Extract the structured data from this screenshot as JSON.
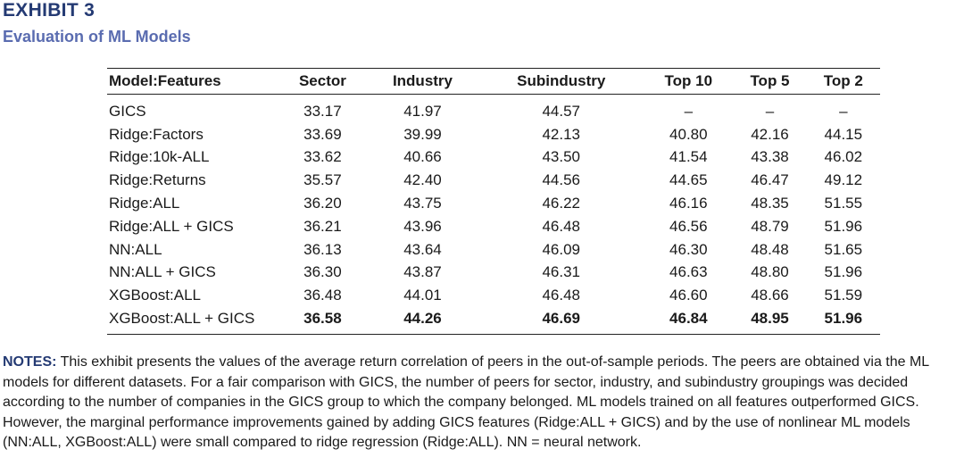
{
  "header": {
    "title": "EXHIBIT 3",
    "subtitle": "Evaluation of ML Models"
  },
  "table": {
    "columns": [
      "Model:Features",
      "Sector",
      "Industry",
      "Subindustry",
      "Top 10",
      "Top 5",
      "Top 2"
    ],
    "rows": [
      [
        "GICS",
        "33.17",
        "41.97",
        "44.57",
        "–",
        "–",
        "–"
      ],
      [
        "Ridge:Factors",
        "33.69",
        "39.99",
        "42.13",
        "40.80",
        "42.16",
        "44.15"
      ],
      [
        "Ridge:10k-ALL",
        "33.62",
        "40.66",
        "43.50",
        "41.54",
        "43.38",
        "46.02"
      ],
      [
        "Ridge:Returns",
        "35.57",
        "42.40",
        "44.56",
        "44.65",
        "46.47",
        "49.12"
      ],
      [
        "Ridge:ALL",
        "36.20",
        "43.75",
        "46.22",
        "46.16",
        "48.35",
        "51.55"
      ],
      [
        "Ridge:ALL + GICS",
        "36.21",
        "43.96",
        "46.48",
        "46.56",
        "48.79",
        "51.96"
      ],
      [
        "NN:ALL",
        "36.13",
        "43.64",
        "46.09",
        "46.30",
        "48.48",
        "51.65"
      ],
      [
        "NN:ALL + GICS",
        "36.30",
        "43.87",
        "46.31",
        "46.63",
        "48.80",
        "51.96"
      ],
      [
        "XGBoost:ALL",
        "36.48",
        "44.01",
        "46.48",
        "46.60",
        "48.66",
        "51.59"
      ],
      [
        "XGBoost:ALL + GICS",
        "36.58",
        "44.26",
        "46.69",
        "46.84",
        "48.95",
        "51.96"
      ]
    ]
  },
  "notes": {
    "label": "NOTES:",
    "text": "This exhibit presents the values of the average return correlation of peers in the out-of-sample periods. The peers are obtained via the ML models for different datasets. For a fair comparison with GICS, the number of peers for sector, industry, and subindustry groupings was decided according to the number of companies in the GICS group to which the company belonged. ML models trained on all features outperformed GICS. However, the marginal performance improvements gained by adding GICS features (Ridge:ALL + GICS) and by the use of nonlinear ML models (NN:ALL, XGBoost:ALL) were small compared to ridge regression (Ridge:ALL). NN = neural network."
  }
}
